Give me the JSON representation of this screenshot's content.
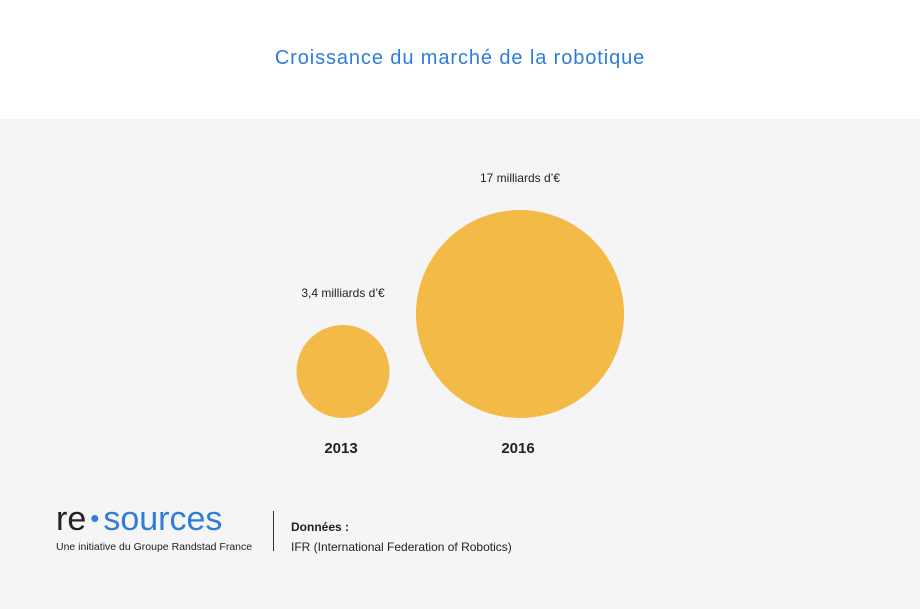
{
  "title": "Croissance du marché de la robotique",
  "chart_data": {
    "type": "bubble",
    "title": "Croissance du marché de la robotique",
    "unit": "milliards d’€",
    "categories": [
      "2013",
      "2016"
    ],
    "values": [
      3.4,
      17
    ],
    "data_labels": [
      "3,4 milliards d’€",
      "17 milliards d’€"
    ],
    "grid": false,
    "legend": "none"
  },
  "colors": {
    "title": "#2f7dd8",
    "bubble": "#f4ba47",
    "panel": "#f5f5f5",
    "text": "#222222",
    "brand": "#2f7dd8"
  },
  "footer": {
    "logo_re": "re",
    "logo_dot": "•",
    "logo_sources": "sources",
    "tagline": "Une initiative du Groupe Randstad France",
    "source_label": "Données :",
    "source_text": "IFR (International Federation of Robotics)"
  }
}
